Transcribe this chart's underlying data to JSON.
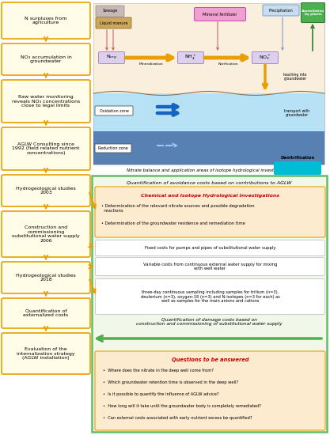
{
  "bg_color": "#ffffff",
  "diagram_title": "Nitrate balance and application areas of isotope hydrological investigations",
  "avoidance_text": "Quantification of avoidance costs based on contributions to AGLW",
  "chem_title": "Chemical and Isotope Hydrological Investigations",
  "chem_b1": "Determination of the relevant nitrate sources and possible degradation\n  reactions",
  "chem_b2": "Determination of the groundwater residence and remediation time",
  "fixed_costs_text": "Fixed costs for pumps and pipes of substitutional water supply",
  "variable_costs_text": "Variable costs from continuous external water supply for mixing\nwith well water",
  "sampling_text": "three-day continuous sampling including samples for tritium (n=3),\ndeuterium (n=3), oxygen-18 (n=3) and N-isotopes (n=3 for each) as\nwell as samples for the main anions and cations",
  "damage_text": "Quantification of damage costs based on\nconstruction and commissioning of substitutional water supply",
  "questions_title": "Questions to be answered",
  "q1": "Where does the nitrate in the deep well come from?",
  "q2": "Which groundwater retention time is observed in the deep well?",
  "q3": "Is it possible to quantify the influence of AGLW advice?",
  "q4": "How long will it take until the groundwater body is completely remediated?",
  "q5": "Can external costs associated with early nutrient excess be quantified?",
  "lb1": "N surpluses from\nagriculture",
  "lb2": "NO₃ accumulation in\ngroundwater",
  "lb3": "Raw water monitoring\nreveals NO₃ concentrations\nclose to legal limits",
  "lb4": "AGLW Consulting since\n1992 (field related nutrient\nconcentrations)",
  "lb5": "Hydrogeological studies\n2003",
  "lb6": "Construction and\ncommissioning\nsubstitutional water supply\n2006",
  "lb7": "Hydrogeological studies\n2018",
  "lb8": "Quantification of\nexternalized costs",
  "lb9": "Evaluation of the\ninternalization strategy\n(AGLW installation)"
}
